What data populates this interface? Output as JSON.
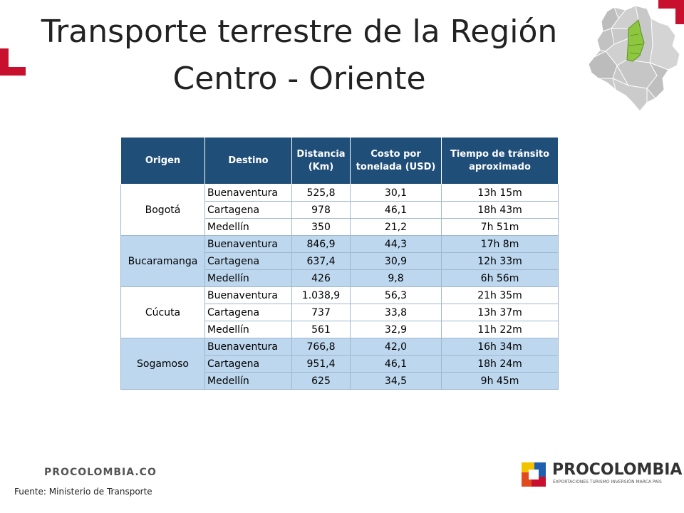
{
  "slide": {
    "title": "Transporte terrestre de la Región Centro - Oriente",
    "footer_brand": "PROCOLOMBIA.CO",
    "source": "Fuente: Ministerio de Transporte",
    "logo_name": "PROCOLOMBIA",
    "logo_tagline": "EXPORTACIONES TURISMO INVERSIÓN MARCA PAÍS",
    "accent_color": "#c8102e",
    "header_color": "#1f4e79",
    "band_color": "#bdd7ee"
  },
  "table": {
    "headers": [
      "Origen",
      "Destino",
      "Distancia (Km)",
      "Costo por tonelada (USD)",
      "Tiempo de tránsito aproximado"
    ],
    "groups": [
      {
        "origin": "Bogotá",
        "rows": [
          {
            "destino": "Buenaventura",
            "distancia": "525,8",
            "costo": "30,1",
            "tiempo": "13h 15m"
          },
          {
            "destino": "Cartagena",
            "distancia": "978",
            "costo": "46,1",
            "tiempo": "18h 43m"
          },
          {
            "destino": "Medellín",
            "distancia": "350",
            "costo": "21,2",
            "tiempo": "7h 51m"
          }
        ]
      },
      {
        "origin": "Bucaramanga",
        "rows": [
          {
            "destino": "Buenaventura",
            "distancia": "846,9",
            "costo": "44,3",
            "tiempo": "17h 8m"
          },
          {
            "destino": "Cartagena",
            "distancia": "637,4",
            "costo": "30,9",
            "tiempo": "12h 33m"
          },
          {
            "destino": "Medellín",
            "distancia": "426",
            "costo": "9,8",
            "tiempo": "6h 56m"
          }
        ]
      },
      {
        "origin": "Cúcuta",
        "rows": [
          {
            "destino": "Buenaventura",
            "distancia": "1.038,9",
            "costo": "56,3",
            "tiempo": "21h 35m"
          },
          {
            "destino": "Cartagena",
            "distancia": "737",
            "costo": "33,8",
            "tiempo": "13h 37m"
          },
          {
            "destino": "Medellín",
            "distancia": "561",
            "costo": "32,9",
            "tiempo": "11h 22m"
          }
        ]
      },
      {
        "origin": "Sogamoso",
        "rows": [
          {
            "destino": "Buenaventura",
            "distancia": "766,8",
            "costo": "42,0",
            "tiempo": "16h 34m"
          },
          {
            "destino": "Cartagena",
            "distancia": "951,4",
            "costo": "46,1",
            "tiempo": "18h 24m"
          },
          {
            "destino": "Medellín",
            "distancia": "625",
            "costo": "34,5",
            "tiempo": "9h 45m"
          }
        ]
      }
    ]
  }
}
